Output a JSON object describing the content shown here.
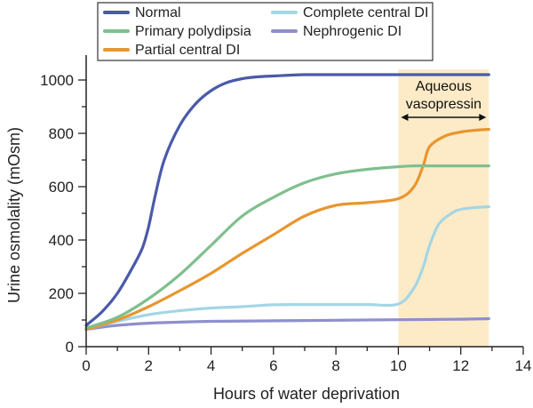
{
  "chart_data": {
    "type": "line",
    "title": "",
    "xlabel": "Hours of water deprivation",
    "ylabel": "Urine osmolality (mOsm)",
    "xlim": [
      0,
      14
    ],
    "ylim": [
      0,
      1000
    ],
    "xticks": [
      0,
      2,
      4,
      6,
      8,
      10,
      12,
      14
    ],
    "yticks": [
      0,
      200,
      400,
      600,
      800,
      1000
    ],
    "grid": false,
    "legend_position": "top",
    "shaded_region": {
      "x_start": 10,
      "x_end": 12.9,
      "color": "#fdebc8",
      "label_lines": [
        "Aqueous",
        "vasopressin"
      ]
    },
    "series": [
      {
        "name": "Normal",
        "color": "#4a5aa8",
        "x": [
          0,
          0.5,
          1,
          1.5,
          1.8,
          2.0,
          2.2,
          2.5,
          3,
          3.5,
          4,
          4.5,
          5,
          5.5,
          6,
          6.5,
          7,
          8,
          9,
          10,
          11,
          12,
          12.9
        ],
        "y": [
          80,
          130,
          200,
          300,
          370,
          450,
          560,
          700,
          830,
          910,
          960,
          990,
          1005,
          1012,
          1015,
          1018,
          1020,
          1020,
          1020,
          1020,
          1020,
          1020,
          1020
        ]
      },
      {
        "name": "Primary polydipsia",
        "color": "#7fbf8e",
        "x": [
          0,
          1,
          2,
          3,
          4,
          5,
          6,
          7,
          8,
          9,
          10,
          10.5,
          11,
          12,
          12.9
        ],
        "y": [
          70,
          110,
          180,
          270,
          380,
          490,
          560,
          615,
          648,
          665,
          675,
          678,
          678,
          678,
          678
        ]
      },
      {
        "name": "Partial central DI",
        "color": "#e8962f",
        "x": [
          0,
          1,
          2,
          3,
          4,
          5,
          6,
          7,
          8,
          9,
          10,
          10.5,
          10.8,
          11.0,
          11.5,
          12,
          12.5,
          12.9
        ],
        "y": [
          65,
          100,
          150,
          210,
          275,
          350,
          420,
          490,
          530,
          540,
          555,
          600,
          680,
          750,
          790,
          805,
          812,
          815
        ]
      },
      {
        "name": "Complete central DI",
        "color": "#a4d6e4",
        "x": [
          0,
          1,
          2,
          3,
          4,
          5,
          6,
          7,
          8,
          9,
          10,
          10.5,
          10.8,
          11.0,
          11.3,
          11.7,
          12,
          12.5,
          12.9
        ],
        "y": [
          65,
          95,
          120,
          135,
          145,
          150,
          157,
          158,
          158,
          158,
          160,
          220,
          300,
          380,
          460,
          500,
          515,
          522,
          525
        ]
      },
      {
        "name": "Nephrogenic DI",
        "color": "#8e8fcd",
        "x": [
          0,
          1,
          2,
          3,
          4,
          6,
          8,
          10,
          12,
          12.9
        ],
        "y": [
          65,
          80,
          88,
          92,
          95,
          97,
          99,
          101,
          103,
          105
        ]
      }
    ]
  }
}
